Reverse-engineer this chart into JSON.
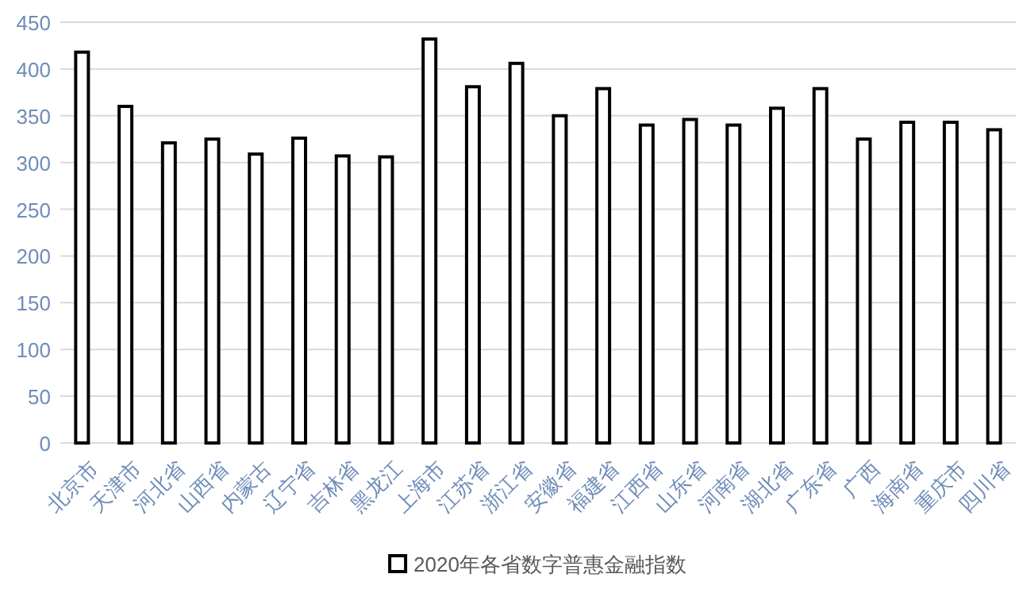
{
  "chart_data": {
    "type": "bar",
    "categories": [
      "北京市",
      "天津市",
      "河北省",
      "山西省",
      "内蒙古",
      "辽宁省",
      "吉林省",
      "黑龙江",
      "上海市",
      "江苏省",
      "浙江省",
      "安徽省",
      "福建省",
      "江西省",
      "山东省",
      "河南省",
      "湖北省",
      "广东省",
      "广西",
      "海南省",
      "重庆市",
      "四川省"
    ],
    "series": [
      {
        "name": "2020年各省数字普惠金融指数",
        "color": "#ffffff",
        "values": [
          418,
          360,
          321,
          325,
          309,
          326,
          307,
          306,
          432,
          381,
          406,
          350,
          379,
          340,
          346,
          340,
          358,
          379,
          325,
          343,
          343,
          335
        ]
      }
    ],
    "ylim": [
      0,
      450
    ],
    "yticks": [
      0,
      50,
      100,
      150,
      200,
      250,
      300,
      350,
      400,
      450
    ],
    "grid": "y",
    "legend": "bottom"
  }
}
